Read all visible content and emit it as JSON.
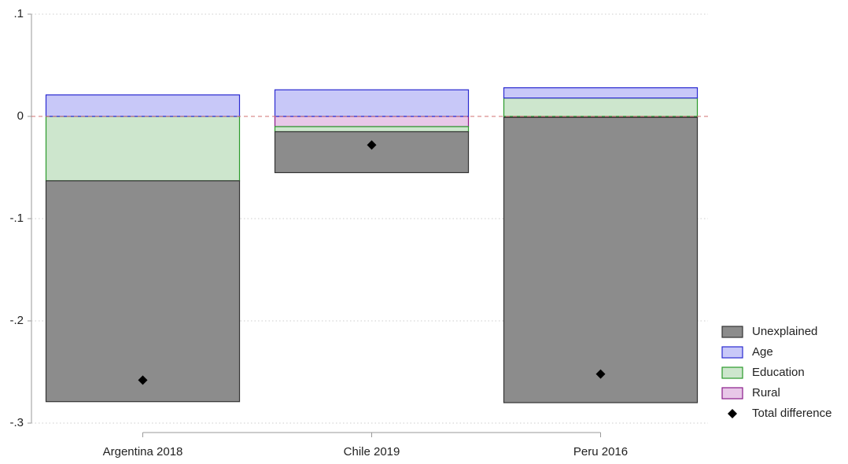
{
  "chart_data": {
    "type": "bar",
    "stacked": true,
    "categories": [
      "Argentina 2018",
      "Chile 2019",
      "Peru 2016"
    ],
    "series": [
      {
        "name": "Unexplained",
        "color": "#8c8c8c",
        "edge": "#333333",
        "values": [
          -0.216,
          -0.04,
          -0.279
        ]
      },
      {
        "name": "Age",
        "color": "#c8c8f8",
        "edge": "#2a2ad0",
        "values": [
          0.021,
          0.026,
          0.01
        ]
      },
      {
        "name": "Education",
        "color": "#cde6cd",
        "edge": "#2a9a2a",
        "values": [
          -0.063,
          -0.005,
          0.018
        ]
      },
      {
        "name": "Rural",
        "color": "#e8c8e8",
        "edge": "#8a1a8a",
        "values": [
          0,
          -0.01,
          -0.001
        ]
      }
    ],
    "total": {
      "name": "Total difference",
      "color": "#000000",
      "values": [
        -0.258,
        -0.028,
        -0.252
      ]
    },
    "ylim": [
      -0.3,
      0.1
    ],
    "yticks": [
      {
        "value": 0.1,
        "label": ".1"
      },
      0,
      {
        "value": -0.1,
        "label": "-.1"
      },
      {
        "value": -0.2,
        "label": "-.2"
      },
      {
        "value": -0.3,
        "label": "-.3"
      }
    ],
    "reference_line": 0,
    "reference_color": "#d07070",
    "grid": true,
    "legend": "bottom-right"
  }
}
